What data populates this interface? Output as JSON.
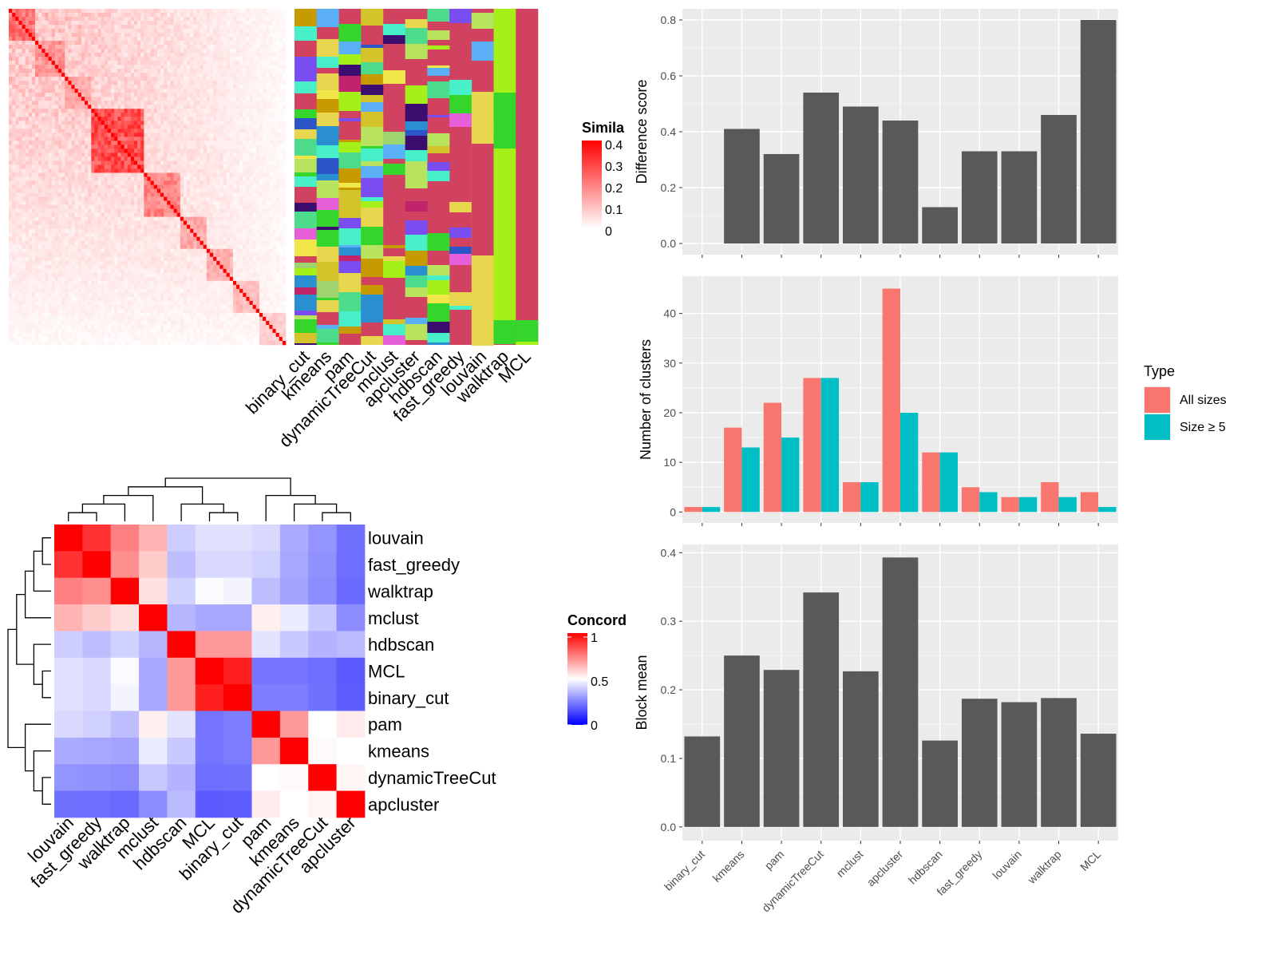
{
  "colors": {
    "panel_bg": "#ebebeb",
    "grid_major": "#ffffff",
    "bar_fill": "#595959",
    "all_sizes": "#f8766d",
    "size_ge5": "#00bfc4",
    "heat_high": "#ff0000",
    "heat_mid": "#ffffff",
    "heat_low": "#0000ff",
    "cluster_bg": "#d0425f"
  },
  "chart_data": [
    {
      "id": "similarity_heatmap",
      "type": "heatmap",
      "methods": [
        "binary_cut",
        "kmeans",
        "pam",
        "dynamicTreeCut",
        "mclust",
        "apcluster",
        "hdbscan",
        "fast_greedy",
        "louvain",
        "walktrap",
        "MCL"
      ],
      "legend": {
        "title": "Similarity",
        "title_visible": "Simila",
        "ticks": [
          "0.4",
          "0.3",
          "0.2",
          "0.1",
          "0"
        ],
        "range": [
          0,
          0.4
        ]
      }
    },
    {
      "id": "concordance_heatmap",
      "type": "heatmap",
      "row_labels": [
        "louvain",
        "fast_greedy",
        "walktrap",
        "mclust",
        "hdbscan",
        "MCL",
        "binary_cut",
        "pam",
        "kmeans",
        "dynamicTreeCut",
        "apcluster"
      ],
      "col_labels": [
        "louvain",
        "fast_greedy",
        "walktrap",
        "mclust",
        "hdbscan",
        "MCL",
        "binary_cut",
        "pam",
        "kmeans",
        "dynamicTreeCut",
        "apcluster"
      ],
      "values": [
        [
          1.0,
          0.9,
          0.75,
          0.65,
          0.37,
          0.42,
          0.42,
          0.4,
          0.28,
          0.22,
          0.13
        ],
        [
          0.9,
          1.0,
          0.72,
          0.6,
          0.33,
          0.4,
          0.4,
          0.38,
          0.27,
          0.21,
          0.12
        ],
        [
          0.75,
          0.72,
          1.0,
          0.56,
          0.38,
          0.49,
          0.47,
          0.33,
          0.26,
          0.2,
          0.11
        ],
        [
          0.65,
          0.6,
          0.56,
          1.0,
          0.31,
          0.27,
          0.27,
          0.53,
          0.45,
          0.36,
          0.2
        ],
        [
          0.37,
          0.33,
          0.38,
          0.31,
          1.0,
          0.7,
          0.7,
          0.43,
          0.36,
          0.3,
          0.32
        ],
        [
          0.42,
          0.4,
          0.49,
          0.27,
          0.7,
          1.0,
          0.94,
          0.14,
          0.14,
          0.12,
          0.07
        ],
        [
          0.42,
          0.4,
          0.47,
          0.27,
          0.7,
          0.94,
          1.0,
          0.16,
          0.16,
          0.13,
          0.08
        ],
        [
          0.4,
          0.38,
          0.33,
          0.53,
          0.43,
          0.14,
          0.16,
          1.0,
          0.7,
          0.5,
          0.54
        ],
        [
          0.28,
          0.27,
          0.26,
          0.45,
          0.36,
          0.14,
          0.16,
          0.7,
          1.0,
          0.51,
          0.5
        ],
        [
          0.22,
          0.21,
          0.2,
          0.36,
          0.3,
          0.12,
          0.13,
          0.5,
          0.51,
          1.0,
          0.52
        ],
        [
          0.13,
          0.12,
          0.11,
          0.2,
          0.32,
          0.07,
          0.08,
          0.54,
          0.5,
          0.52,
          1.0
        ]
      ],
      "legend": {
        "title": "Concordance",
        "title_visible": "Concord",
        "ticks": [
          "1",
          "0.5",
          "0"
        ],
        "range": [
          0,
          1
        ]
      }
    },
    {
      "id": "difference_score",
      "type": "bar",
      "categories": [
        "binary_cut",
        "kmeans",
        "pam",
        "dynamicTreeCut",
        "mclust",
        "apcluster",
        "hdbscan",
        "fast_greedy",
        "louvain",
        "walktrap",
        "MCL"
      ],
      "values": [
        0.0,
        0.41,
        0.32,
        0.54,
        0.49,
        0.44,
        0.13,
        0.33,
        0.33,
        0.46,
        0.8
      ],
      "ylabel": "Difference score",
      "ylim": [
        -0.04,
        0.84
      ],
      "yticks": [
        0.0,
        0.2,
        0.4,
        0.6,
        0.8
      ],
      "ytick_labels": [
        "0.0",
        "0.2",
        "0.4",
        "0.6",
        "0.8"
      ],
      "grid": true
    },
    {
      "id": "number_of_clusters",
      "type": "bar",
      "categories": [
        "binary_cut",
        "kmeans",
        "pam",
        "dynamicTreeCut",
        "mclust",
        "apcluster",
        "hdbscan",
        "fast_greedy",
        "louvain",
        "walktrap",
        "MCL"
      ],
      "series": [
        {
          "name": "All sizes",
          "values": [
            1,
            17,
            22,
            27,
            6,
            45,
            12,
            5,
            3,
            6,
            4
          ]
        },
        {
          "name": "Size ≥ 5",
          "values": [
            1,
            13,
            15,
            27,
            6,
            20,
            12,
            4,
            3,
            3,
            1
          ]
        }
      ],
      "ylabel": "Number of clusters",
      "ylim": [
        -2.2,
        47.5
      ],
      "yticks": [
        0,
        10,
        20,
        30,
        40
      ],
      "ytick_labels": [
        "0",
        "10",
        "20",
        "30",
        "40"
      ],
      "legend": {
        "title": "Type",
        "position": "right"
      },
      "grid": true
    },
    {
      "id": "block_mean",
      "type": "bar",
      "categories": [
        "binary_cut",
        "kmeans",
        "pam",
        "dynamicTreeCut",
        "mclust",
        "apcluster",
        "hdbscan",
        "fast_greedy",
        "louvain",
        "walktrap",
        "MCL"
      ],
      "values": [
        0.132,
        0.25,
        0.229,
        0.342,
        0.227,
        0.393,
        0.126,
        0.187,
        0.182,
        0.188,
        0.136
      ],
      "ylabel": "Block mean",
      "ylim": [
        -0.02,
        0.412
      ],
      "yticks": [
        0.0,
        0.1,
        0.2,
        0.3,
        0.4
      ],
      "ytick_labels": [
        "0.0",
        "0.1",
        "0.2",
        "0.3",
        "0.4"
      ],
      "grid": true
    }
  ]
}
